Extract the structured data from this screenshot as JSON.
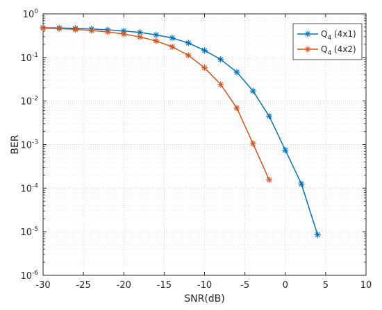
{
  "chart_data": {
    "type": "line",
    "xlabel": "SNR(dB)",
    "ylabel": "BER",
    "xlim": [
      -30,
      10
    ],
    "ylim": [
      1e-06,
      1
    ],
    "yscale": "log",
    "grid": true,
    "minor_grid": true,
    "legend_position": "top-right",
    "x_ticks": [
      -30,
      -25,
      -20,
      -15,
      -10,
      -5,
      0,
      5,
      10
    ],
    "x_tick_labels": [
      "-30",
      "-25",
      "-20",
      "-15",
      "-10",
      "-5",
      "0",
      "5",
      "10"
    ],
    "y_ticks": [
      {
        "value": 1,
        "base": "10",
        "exp": "0"
      },
      {
        "value": 0.1,
        "base": "10",
        "exp": "-1"
      },
      {
        "value": 0.01,
        "base": "10",
        "exp": "-2"
      },
      {
        "value": 0.001,
        "base": "10",
        "exp": "-3"
      },
      {
        "value": 0.0001,
        "base": "10",
        "exp": "-4"
      },
      {
        "value": 1e-05,
        "base": "10",
        "exp": "-5"
      },
      {
        "value": 1e-06,
        "base": "10",
        "exp": "-6"
      }
    ],
    "series": [
      {
        "name_main": "Q",
        "name_sub": "4",
        "name_rest": " (4x1)",
        "color": "#0072BD",
        "marker": "asterisk",
        "x": [
          -30,
          -28,
          -26,
          -24,
          -22,
          -20,
          -18,
          -16,
          -14,
          -12,
          -10,
          -8,
          -6,
          -4,
          -2,
          0,
          2,
          4
        ],
        "y": [
          0.48,
          0.475,
          0.465,
          0.45,
          0.43,
          0.405,
          0.375,
          0.33,
          0.28,
          0.215,
          0.145,
          0.09,
          0.046,
          0.017,
          0.0045,
          0.00075,
          0.000125,
          8.5e-06
        ]
      },
      {
        "name_main": "Q",
        "name_sub": "4",
        "name_rest": " (4x2)",
        "color": "#D95319",
        "marker": "asterisk",
        "x": [
          -30,
          -28,
          -26,
          -24,
          -22,
          -20,
          -18,
          -16,
          -14,
          -12,
          -10,
          -8,
          -6,
          -4,
          -2
        ],
        "y": [
          0.47,
          0.46,
          0.44,
          0.415,
          0.385,
          0.345,
          0.295,
          0.24,
          0.175,
          0.112,
          0.058,
          0.024,
          0.0069,
          0.00105,
          0.000155
        ]
      }
    ]
  }
}
